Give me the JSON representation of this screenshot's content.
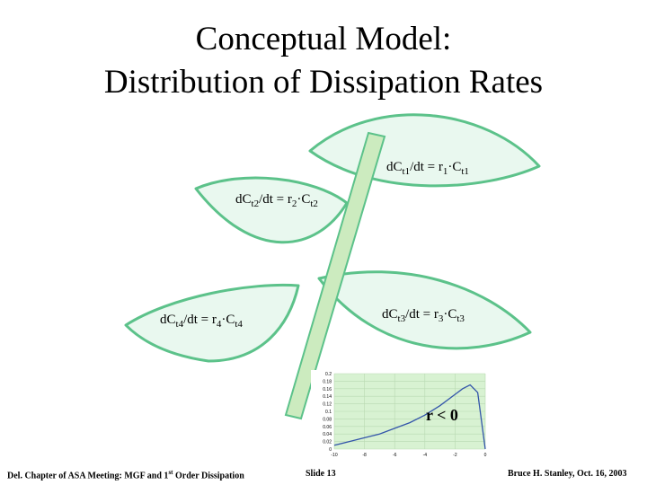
{
  "header": {
    "title_line1": "Conceptual Model:",
    "title_line2": "Distribution of Dissipation Rates"
  },
  "equations": [
    {
      "lhs": "dC",
      "lhs_sub": "t1",
      "mid": "/dt = r",
      "r_sub": "1",
      "rhs": "·C",
      "rhs_sub": "t1"
    },
    {
      "lhs": "dC",
      "lhs_sub": "t2",
      "mid": "/dt = r",
      "r_sub": "2",
      "rhs": "·C",
      "rhs_sub": "t2"
    },
    {
      "lhs": "dC",
      "lhs_sub": "t3",
      "mid": "/dt = r",
      "r_sub": "3",
      "rhs": "·C",
      "rhs_sub": "t3"
    },
    {
      "lhs": "dC",
      "lhs_sub": "t4",
      "mid": "/dt = r",
      "r_sub": "4",
      "rhs": "·C",
      "rhs_sub": "t4"
    }
  ],
  "condition": "r < 0",
  "inset_chart": {
    "type": "line",
    "color": "#3355aa",
    "x": [
      -10,
      -9,
      -8,
      -7,
      -6,
      -5,
      -4,
      -3,
      -2,
      -1.5,
      -1,
      -0.5,
      0
    ],
    "values": [
      0.01,
      0.02,
      0.03,
      0.04,
      0.055,
      0.07,
      0.09,
      0.115,
      0.145,
      0.16,
      0.17,
      0.15,
      0
    ],
    "xlim": [
      -10,
      0
    ],
    "ylim": [
      0,
      0.2
    ],
    "xticks": [
      -10,
      -8,
      -6,
      -4,
      -2,
      0
    ],
    "yticks": [
      0,
      0.02,
      0.04,
      0.06,
      0.08,
      0.1,
      0.12,
      0.14,
      0.16,
      0.18,
      0.2
    ],
    "grid": true
  },
  "footer": {
    "left": "Del. Chapter of ASA Meeting: MGF and 1",
    "left_sup": "st",
    "left_after": " Order Dissipation",
    "center": "Slide 13",
    "right": "Bruce H. Stanley, Oct. 16, 2003"
  }
}
